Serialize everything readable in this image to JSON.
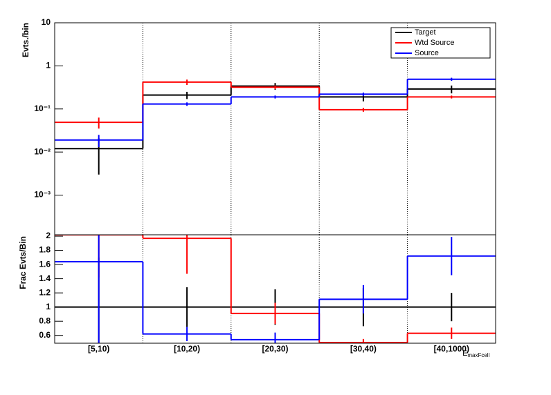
{
  "chart_data": [
    {
      "type": "step",
      "log_y": true,
      "ylabel": "Evts./bin",
      "categories": [
        "[5,10)",
        "[10,20)",
        "[20,30)",
        "[30,40)",
        "[40,1000)"
      ],
      "ylim": [
        0.00012,
        10
      ],
      "yticks": [
        {
          "value": 0.001,
          "label": "10⁻³"
        },
        {
          "value": 0.01,
          "label": "10⁻²"
        },
        {
          "value": 0.1,
          "label": "10⁻¹"
        },
        1,
        10
      ],
      "legend": "top-right",
      "series": [
        {
          "name": "Target",
          "color": "#000000",
          "values": [
            0.012,
            0.21,
            0.34,
            0.19,
            0.29
          ],
          "errors": [
            0.009,
            0.04,
            0.06,
            0.04,
            0.06
          ]
        },
        {
          "name": "Wtd Source",
          "color": "#ff0000",
          "values": [
            0.049,
            0.42,
            0.32,
            0.096,
            0.19
          ],
          "errors": [
            0.014,
            0.06,
            0.03,
            0.01,
            0.015
          ]
        },
        {
          "name": "Source",
          "color": "#0000ff",
          "values": [
            0.019,
            0.13,
            0.19,
            0.22,
            0.49
          ],
          "errors": [
            0.006,
            0.012,
            0.015,
            0.02,
            0.04
          ]
        }
      ]
    },
    {
      "type": "step",
      "ylabel": "Frac Evts/Bin",
      "xlabel": "E",
      "xlabel_sub": "maxFcell",
      "categories": [
        "[5,10)",
        "[10,20)",
        "[20,30)",
        "[30,40)",
        "[40,1000)"
      ],
      "ylim": [
        0.49,
        2.02
      ],
      "yticks": [
        0.6,
        0.8,
        1,
        1.2,
        1.4,
        1.6,
        1.8,
        2
      ],
      "series": [
        {
          "color": "#000000",
          "values": [
            1,
            1,
            1,
            1,
            1
          ],
          "errors": [
            0.7,
            0.28,
            0.25,
            0.27,
            0.2
          ]
        },
        {
          "color": "#ff0000",
          "values": [
            2.02,
            1.97,
            0.91,
            0.5,
            0.63
          ],
          "errors": [
            0.6,
            0.5,
            0.15,
            0.05,
            0.08
          ]
        },
        {
          "color": "#0000ff",
          "values": [
            1.64,
            0.62,
            0.54,
            1.11,
            1.72
          ],
          "errors": [
            1.2,
            0.1,
            0.1,
            0.2,
            0.27
          ]
        }
      ]
    }
  ]
}
